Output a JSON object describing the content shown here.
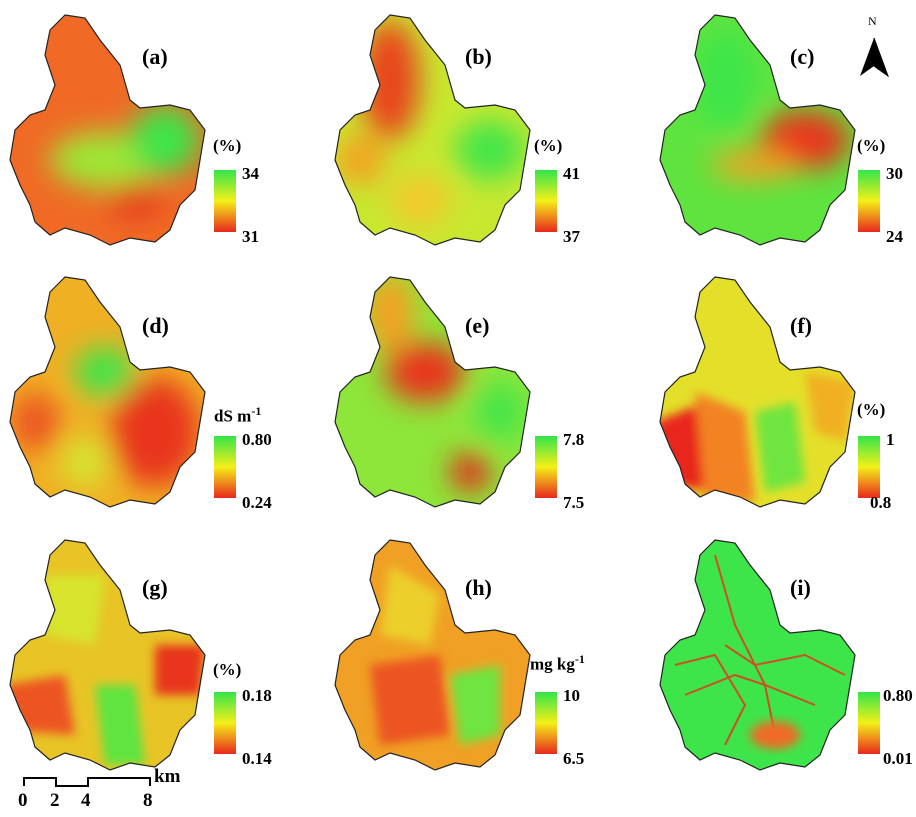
{
  "panels": [
    {
      "id": "a",
      "letter": "(a)",
      "unit": "(%)",
      "max": "34",
      "min": "31"
    },
    {
      "id": "b",
      "letter": "(b)",
      "unit": "(%)",
      "max": "41",
      "min": "37"
    },
    {
      "id": "c",
      "letter": "(c)",
      "unit": "(%)",
      "max": "30",
      "min": "24"
    },
    {
      "id": "d",
      "letter": "(d)",
      "unit": "dS m",
      "unit_sup": "-1",
      "max": "0.80",
      "min": "0.24"
    },
    {
      "id": "e",
      "letter": "(e)",
      "unit": "",
      "max": "7.8",
      "min": "7.5"
    },
    {
      "id": "f",
      "letter": "(f)",
      "unit": "(%)",
      "max": "1",
      "min": "0.8"
    },
    {
      "id": "g",
      "letter": "(g)",
      "unit": "(%)",
      "max": "0.18",
      "min": "0.14"
    },
    {
      "id": "h",
      "letter": "(h)",
      "unit": "mg kg",
      "unit_sup": "-1",
      "max": "10",
      "min": "6.5"
    },
    {
      "id": "i",
      "letter": "(i)",
      "unit": "",
      "max": "0.80",
      "min": "0.01"
    }
  ],
  "north_arrow": {
    "label": "N",
    "icon": "north-arrow-icon"
  },
  "scale_bar": {
    "unit": "km",
    "ticks": [
      "0",
      "2",
      "4",
      "8"
    ]
  },
  "colors": {
    "high": "#33e54a",
    "mid": "#f4f018",
    "low": "#e8281e",
    "outline": "#222222"
  }
}
